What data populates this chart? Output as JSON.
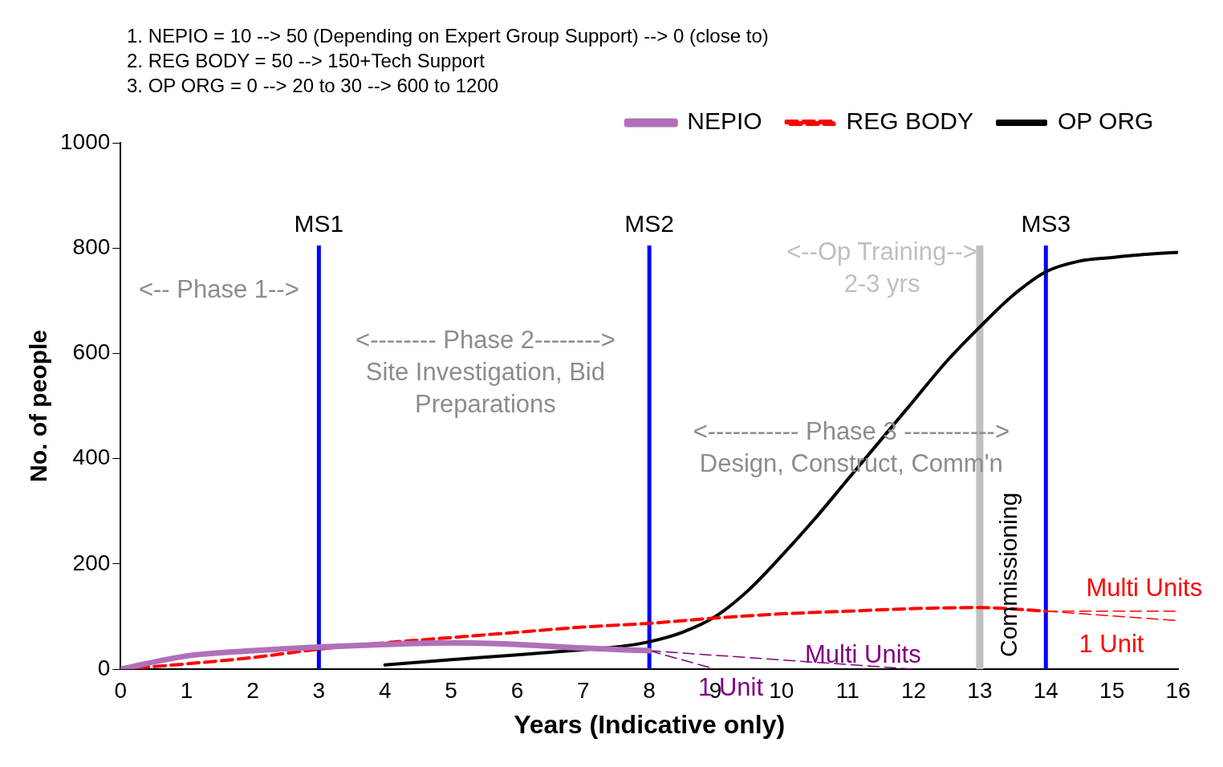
{
  "chart_data": {
    "type": "line",
    "xlabel": "Years (Indicative only)",
    "ylabel": "No. of people",
    "xlim": [
      0,
      16
    ],
    "ylim": [
      0,
      1000
    ],
    "xticks": [
      0,
      1,
      2,
      3,
      4,
      5,
      6,
      7,
      8,
      9,
      10,
      11,
      12,
      13,
      14,
      15,
      16
    ],
    "yticks": [
      0,
      200,
      400,
      600,
      800,
      1000
    ],
    "grid": false,
    "legend": "top right",
    "marker": "none",
    "series": [
      {
        "name": "NEPIO",
        "color": "#b070b8",
        "line_style": "solid",
        "x": [
          0,
          1,
          2,
          3,
          4,
          5,
          6,
          7,
          8
        ],
        "values": [
          0,
          25,
          35,
          42,
          47,
          50,
          47,
          40,
          35
        ]
      },
      {
        "color": "#800080",
        "line_style": "dashed",
        "x": [
          8,
          12
        ],
        "values": [
          35,
          0
        ]
      },
      {
        "color": "#800080",
        "line_style": "dashed",
        "x": [
          8,
          9
        ],
        "values": [
          35,
          0
        ]
      },
      {
        "name": "REG BODY",
        "color": "#ff0000",
        "line_style": "dashed",
        "x": [
          0,
          1,
          2,
          3,
          4,
          5,
          6,
          7,
          8,
          9,
          10,
          11,
          12,
          13,
          14
        ],
        "values": [
          0,
          10,
          22,
          38,
          50,
          60,
          70,
          80,
          87,
          97,
          105,
          110,
          115,
          117,
          110
        ]
      },
      {
        "color": "#ff0000",
        "line_style": "dashed",
        "x": [
          14,
          16
        ],
        "values": [
          110,
          110
        ]
      },
      {
        "color": "#ff0000",
        "line_style": "dashed",
        "x": [
          14,
          16
        ],
        "values": [
          110,
          92
        ]
      },
      {
        "name": "OP ORG",
        "color": "#000000",
        "line_style": "solid",
        "x": [
          4,
          5,
          6,
          7,
          7.5,
          8,
          8.5,
          9,
          9.5,
          10,
          10.5,
          11,
          11.5,
          12,
          12.5,
          13,
          13.5,
          14,
          14.5,
          15,
          15.5,
          16
        ],
        "values": [
          8,
          18,
          27,
          37,
          42,
          52,
          70,
          100,
          150,
          215,
          285,
          360,
          435,
          510,
          585,
          650,
          710,
          755,
          775,
          782,
          788,
          792
        ]
      }
    ],
    "ref_lines": [
      {
        "axis": "x",
        "value": 3,
        "label": "MS1",
        "color": "#0000ff"
      },
      {
        "axis": "x",
        "value": 8,
        "label": "MS2",
        "color": "#0000ff"
      },
      {
        "axis": "x",
        "value": 14,
        "label": "MS3",
        "color": "#0000ff"
      },
      {
        "axis": "x",
        "value": 13,
        "label": "Commissioning",
        "color": "#c0c0c0"
      }
    ],
    "annotations": [
      "1. NEPIO = 10 --> 50 (Depending on Expert Group Support) --> 0 (close to)",
      "2. REG BODY = 50 --> 150+Tech Support",
      "3. OP ORG = 0 --> 20 to 30 --> 600 to 1200",
      "<-- Phase 1-->",
      "<-------- Phase 2-------->\nSite Investigation, Bid\nPreparations",
      "<----------- Phase 3 ----------->\nDesign, Construct, Comm'n",
      "<--Op Training-->\n2-3 yrs",
      "Multi Units",
      "1 Unit",
      "Multi Units",
      "1 Unit"
    ]
  }
}
